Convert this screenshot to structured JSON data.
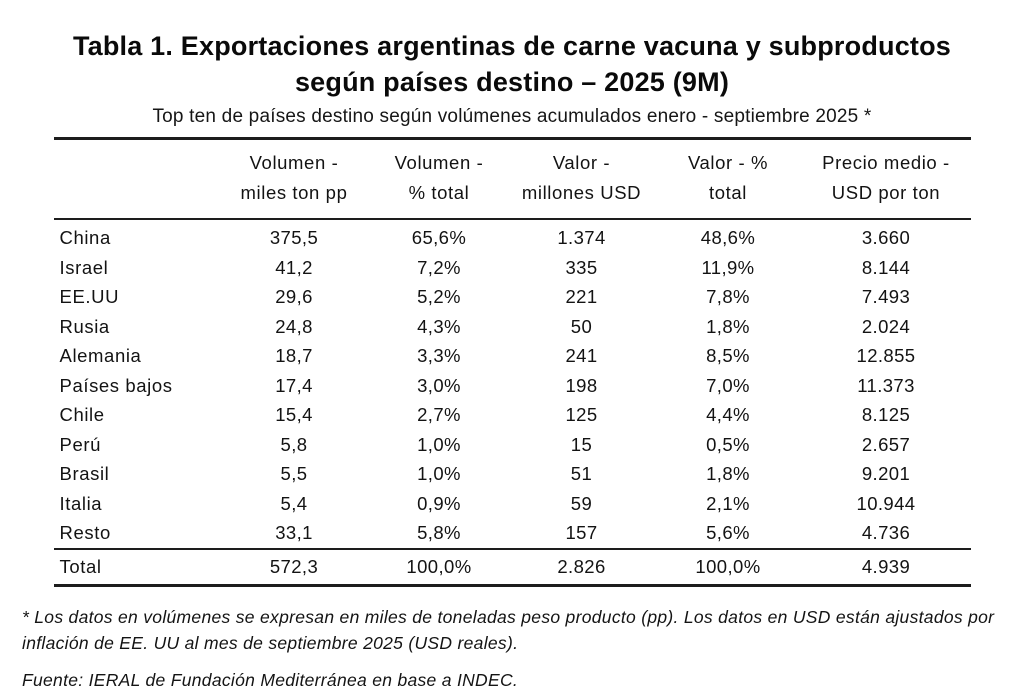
{
  "header": {
    "title_lines": [
      "Tabla 1. Exportaciones argentinas de carne vacuna y subproductos",
      "según países destino – 2025 (9M)"
    ],
    "subtitle": "Top ten de países destino según volúmenes acumulados enero - septiembre 2025 *"
  },
  "table": {
    "columns": [
      {
        "line1": "",
        "line2": ""
      },
      {
        "line1": "Volumen -",
        "line2": "miles ton pp"
      },
      {
        "line1": "Volumen -",
        "line2": "% total"
      },
      {
        "line1": "Valor -",
        "line2": "millones USD"
      },
      {
        "line1": "Valor - %",
        "line2": "total"
      },
      {
        "line1": "Precio medio -",
        "line2": "USD por ton"
      }
    ],
    "rows": [
      [
        "China",
        "375,5",
        "65,6%",
        "1.374",
        "48,6%",
        "3.660"
      ],
      [
        "Israel",
        "41,2",
        "7,2%",
        "335",
        "11,9%",
        "8.144"
      ],
      [
        "EE.UU",
        "29,6",
        "5,2%",
        "221",
        "7,8%",
        "7.493"
      ],
      [
        "Rusia",
        "24,8",
        "4,3%",
        "50",
        "1,8%",
        "2.024"
      ],
      [
        "Alemania",
        "18,7",
        "3,3%",
        "241",
        "8,5%",
        "12.855"
      ],
      [
        "Países bajos",
        "17,4",
        "3,0%",
        "198",
        "7,0%",
        "11.373"
      ],
      [
        "Chile",
        "15,4",
        "2,7%",
        "125",
        "4,4%",
        "8.125"
      ],
      [
        "Perú",
        "5,8",
        "1,0%",
        "15",
        "0,5%",
        "2.657"
      ],
      [
        "Brasil",
        "5,5",
        "1,0%",
        "51",
        "1,8%",
        "9.201"
      ],
      [
        "Italia",
        "5,4",
        "0,9%",
        "59",
        "2,1%",
        "10.944"
      ],
      [
        "Resto",
        "33,1",
        "5,8%",
        "157",
        "5,6%",
        "4.736"
      ]
    ],
    "total_row": [
      "Total",
      "572,3",
      "100,0%",
      "2.826",
      "100,0%",
      "4.939"
    ]
  },
  "notes": {
    "footnote": "* Los datos en volúmenes se expresan en miles de toneladas peso producto (pp). Los datos en USD están ajustados por inflación de EE. UU al mes de septiembre 2025 (USD reales).",
    "source": "Fuente: IERAL de Fundación Mediterránea en base a INDEC."
  }
}
